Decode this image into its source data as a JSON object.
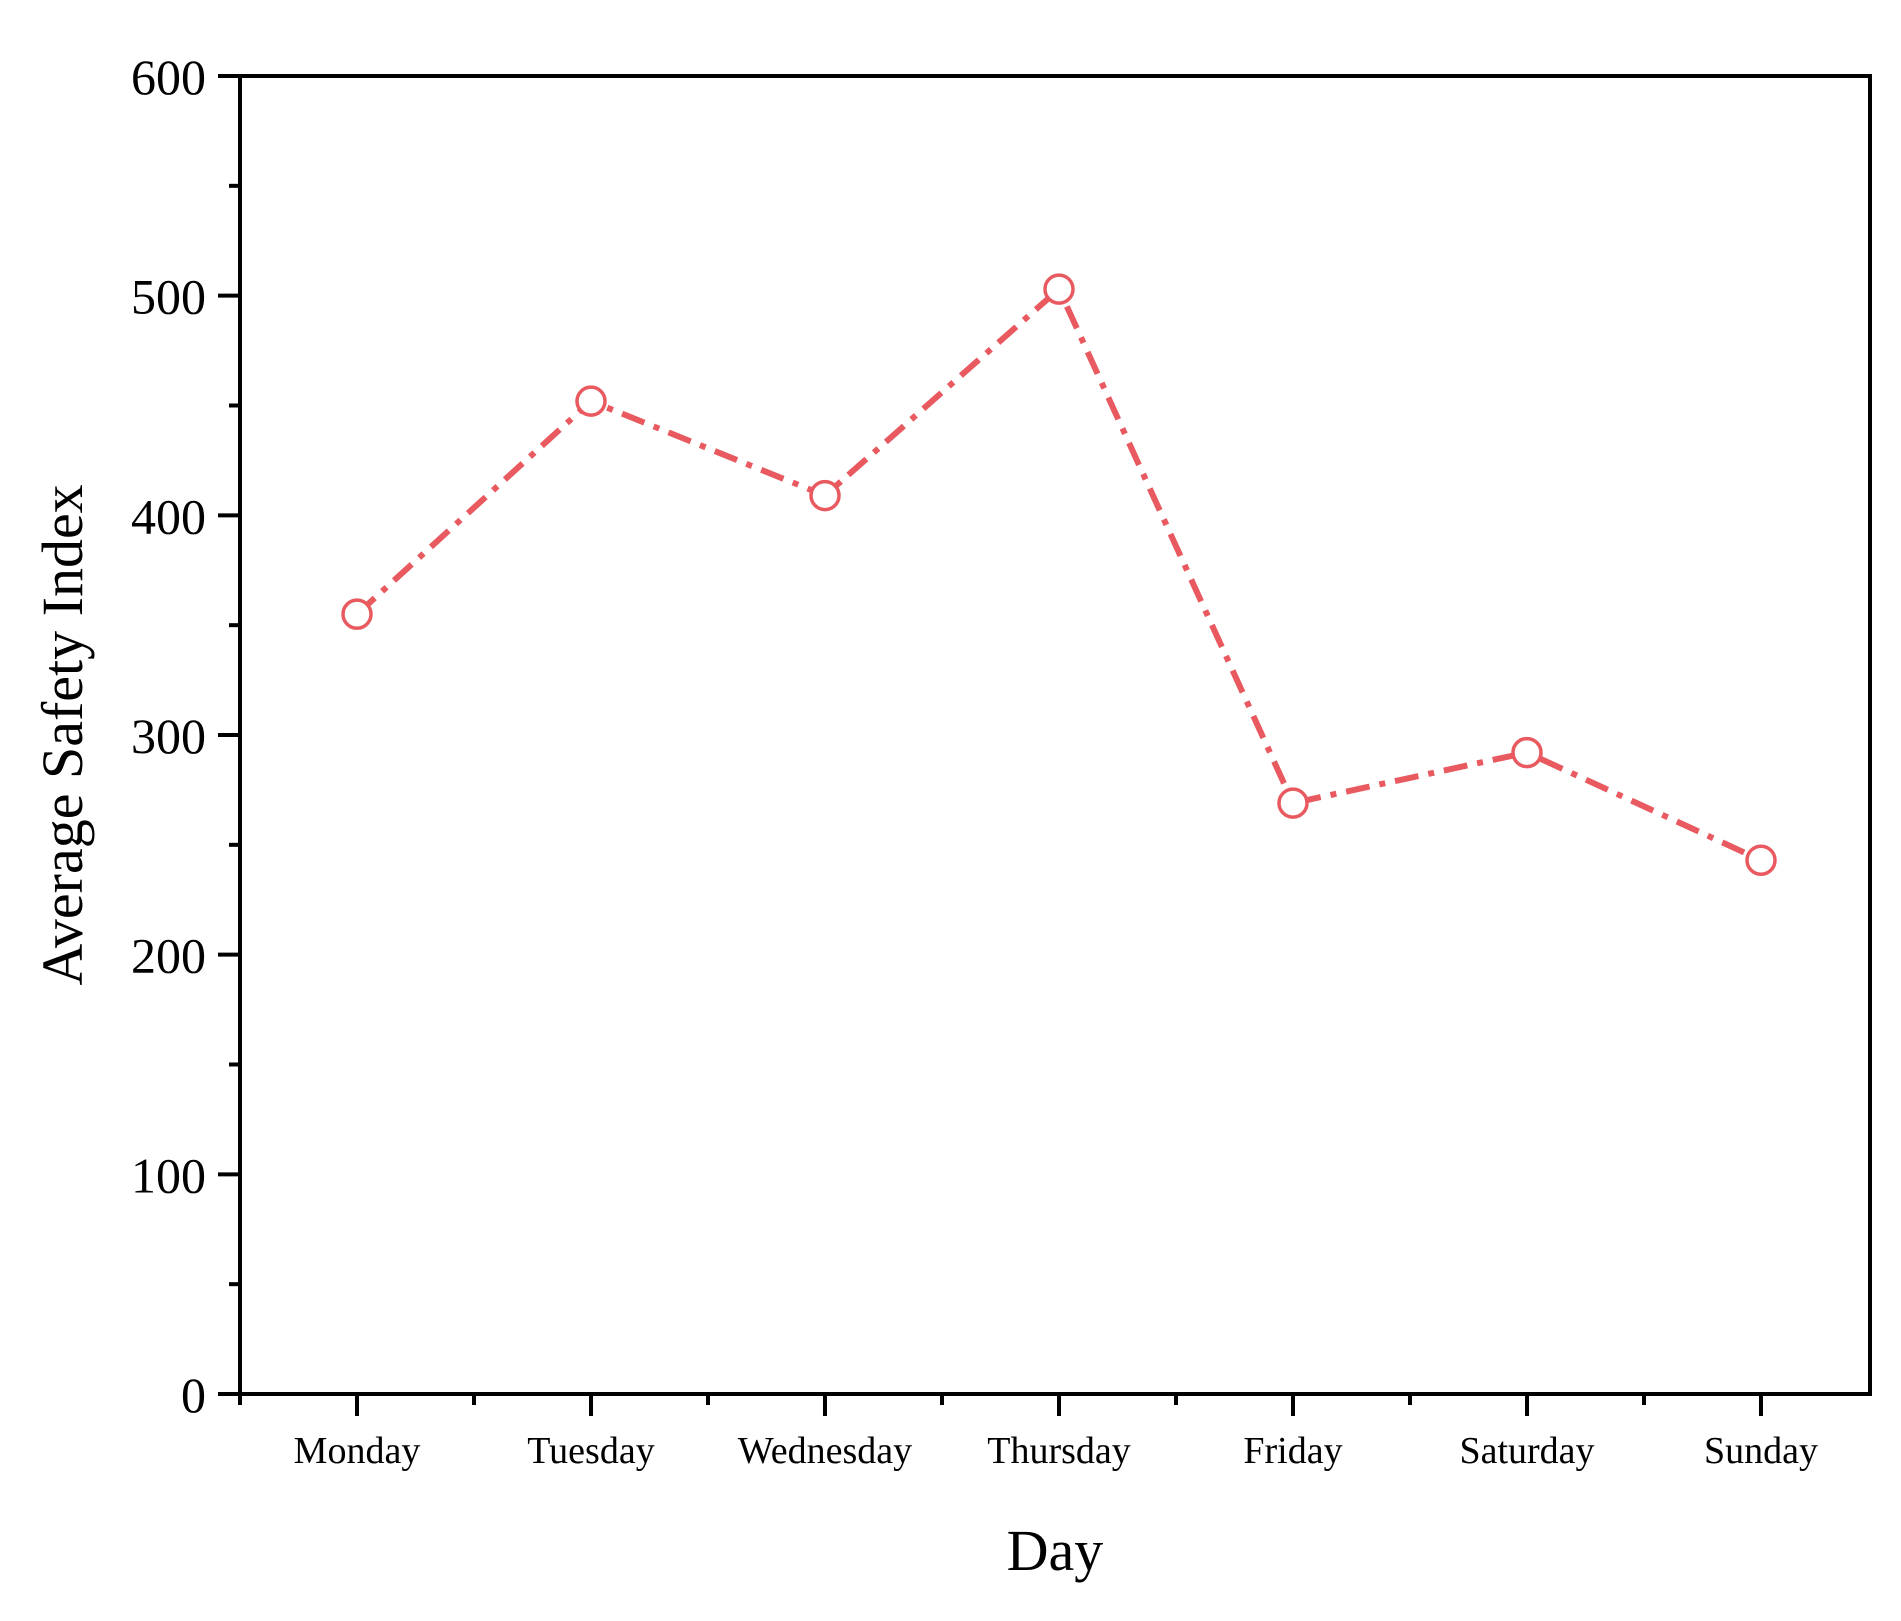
{
  "chart_data": {
    "type": "line",
    "title": "",
    "xlabel": "Day",
    "ylabel": "Average Safety Index",
    "categories": [
      "Monday",
      "Tuesday",
      "Wednesday",
      "Thursday",
      "Friday",
      "Saturday",
      "Sunday"
    ],
    "series": [
      {
        "values": [
          355,
          452,
          409,
          503,
          269,
          292,
          243
        ],
        "color": "#e85a5f",
        "line_style": "dash-dot",
        "marker": "open-circle"
      }
    ],
    "ylim": [
      0,
      600
    ],
    "yticks": [
      0,
      100,
      200,
      300,
      400,
      500,
      600
    ],
    "grid": false,
    "legend": "none"
  }
}
